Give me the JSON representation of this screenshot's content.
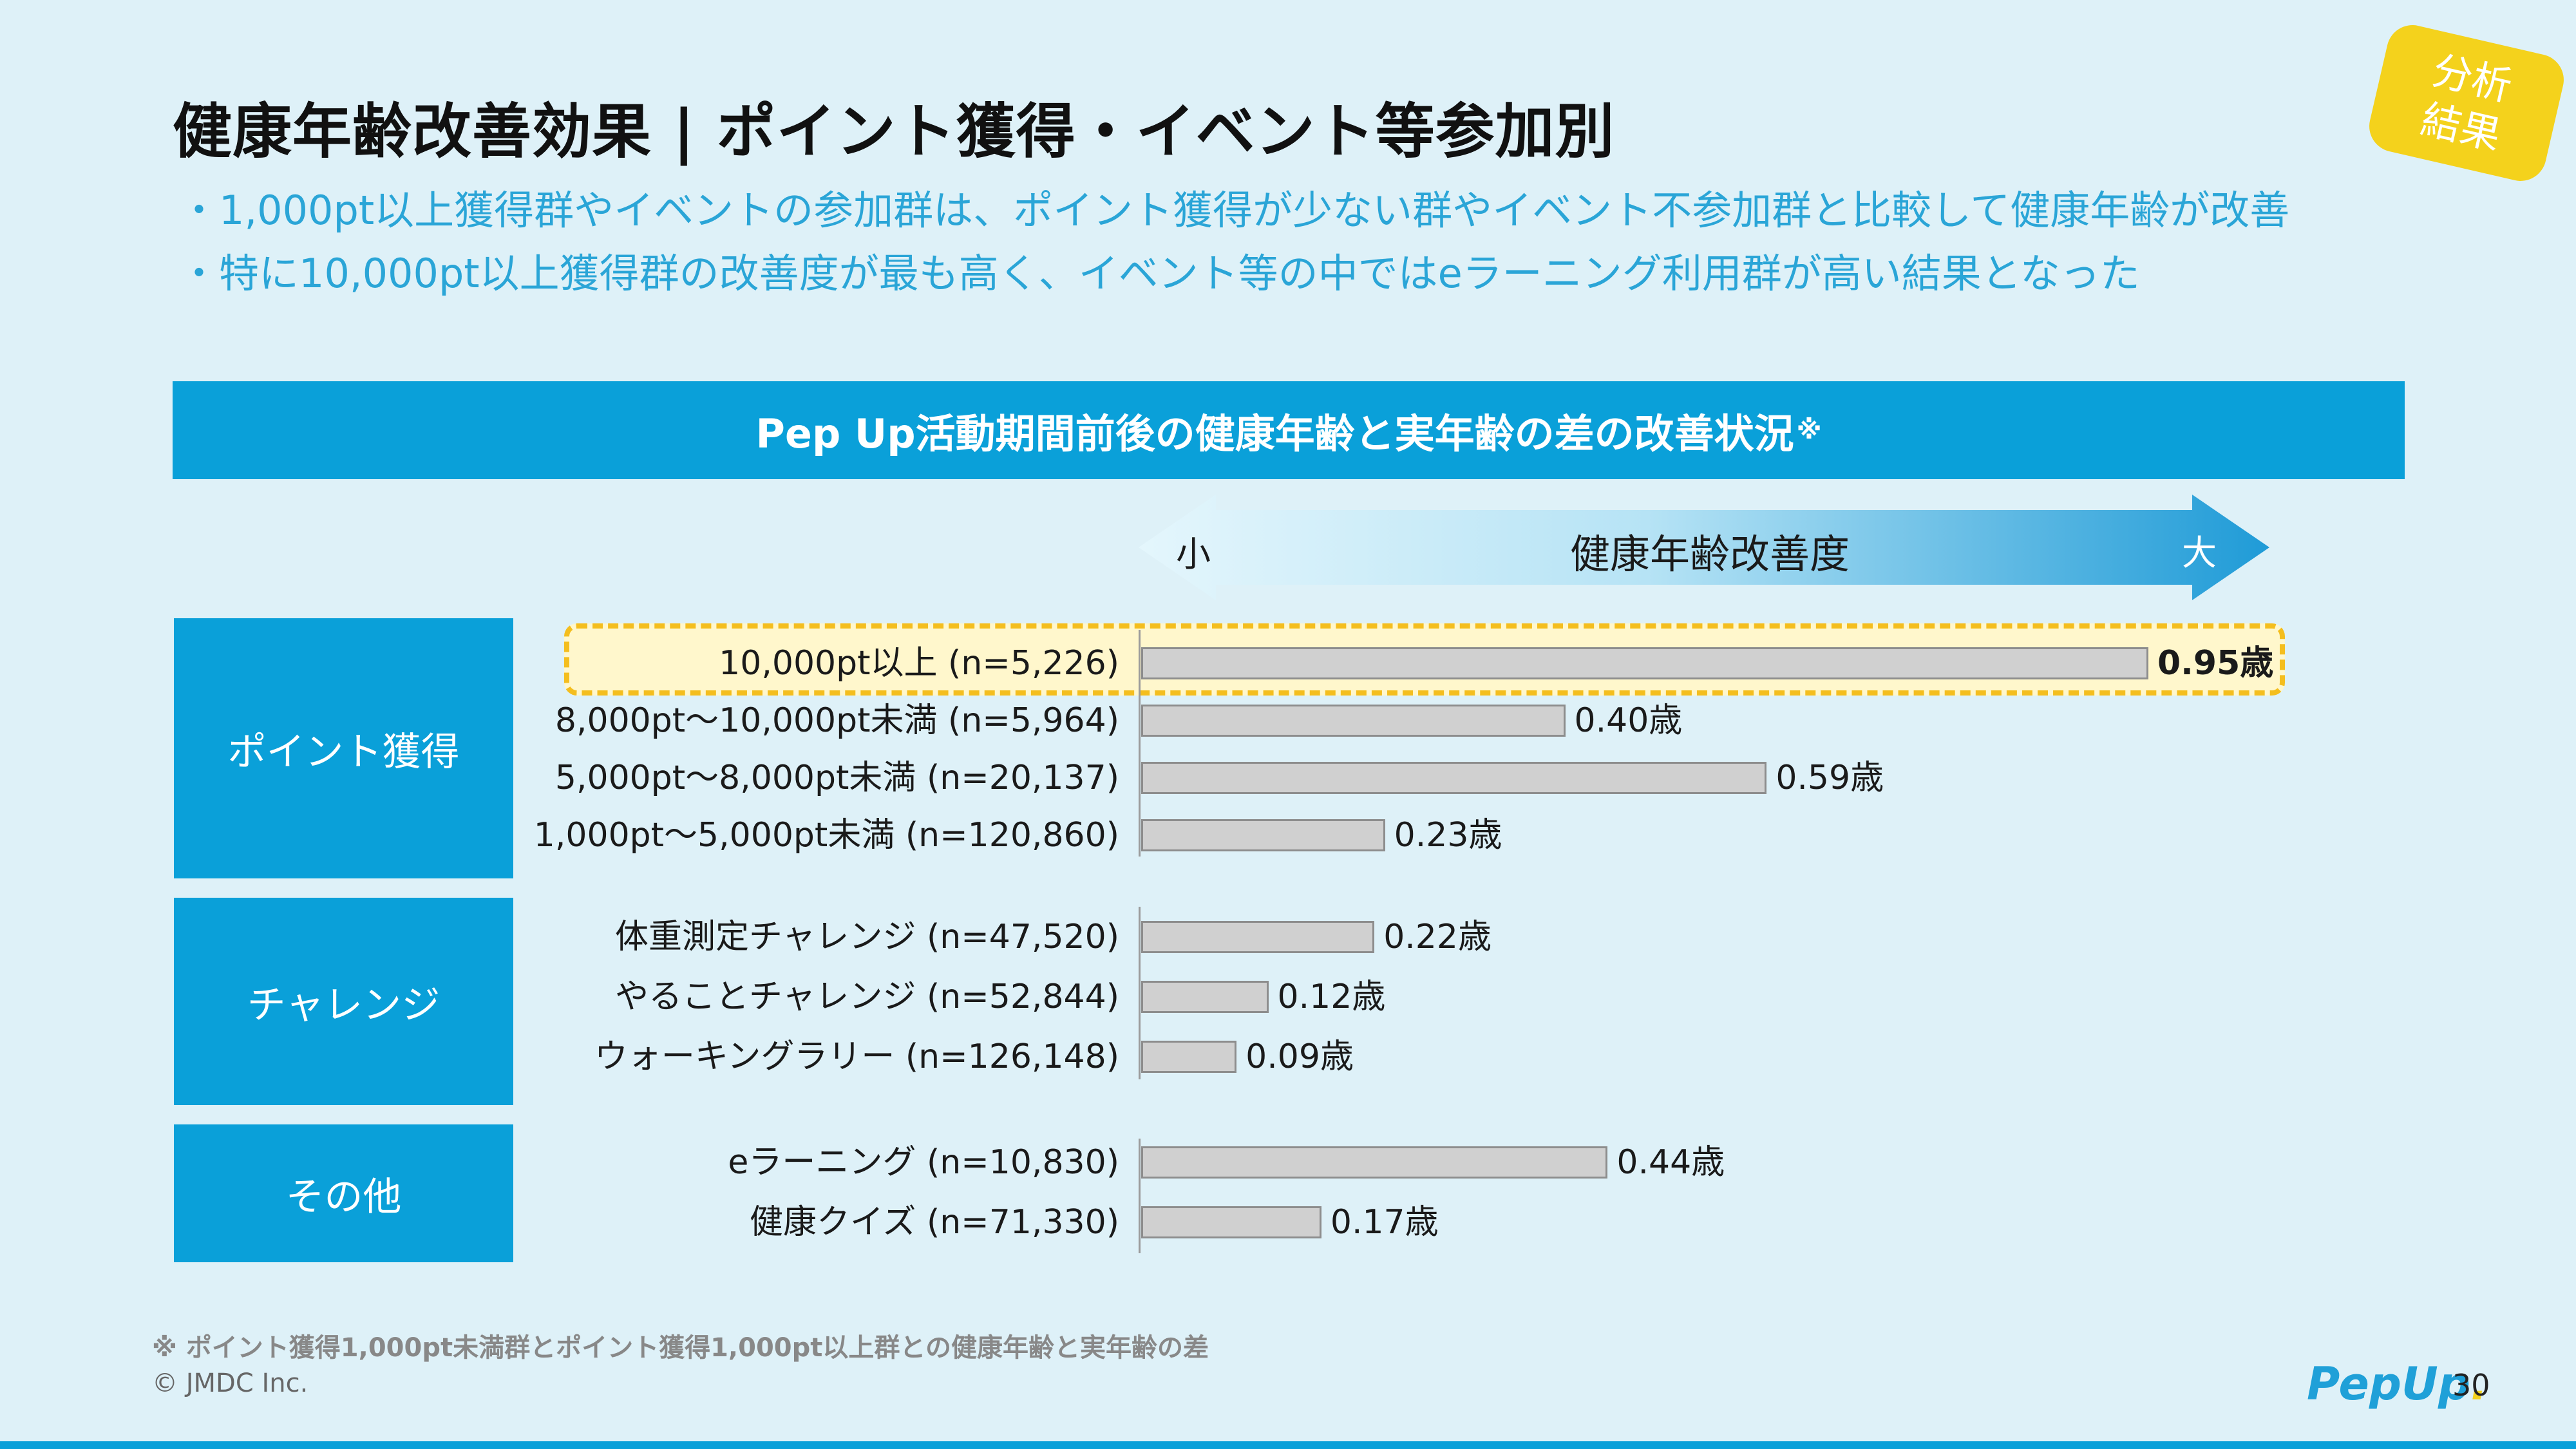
{
  "title": "健康年齢改善効果 | ポイント獲得・イベント等参加別",
  "badge": {
    "line1": "分析",
    "line2": "結果",
    "color": "#f4d21c"
  },
  "bullets": [
    "・1,000pt以上獲得群やイベントの参加群は、ポイント獲得が少ない群やイベント不参加群と比較して健康年齢が改善",
    "・特に10,000pt以上獲得群の改善度が最も高く、イベント等の中ではeラーニング利用群が高い結果となった"
  ],
  "banner": {
    "text": "Pep Up活動期間前後の健康年齢と実年齢の差の改善状況",
    "mark": "※"
  },
  "arrow": {
    "small": "小",
    "label": "健康年齢改善度",
    "big": "大"
  },
  "groups": {
    "points": "ポイント獲得",
    "challenge": "チャレンジ",
    "other": "その他"
  },
  "chart_data": {
    "type": "bar",
    "orientation": "horizontal",
    "title": "Pep Up活動期間前後の健康年齢と実年齢の差の改善状況※",
    "xlim": [
      0,
      0.95
    ],
    "categories": [
      "10,000pt以上 (n=5,226)",
      "8,000pt〜10,000pt未満 (n=5,964)",
      "5,000pt〜8,000pt未満 (n=20,137)",
      "1,000pt〜5,000pt未満 (n=120,860)",
      "体重測定チャレンジ (n=47,520)",
      "やることチャレンジ (n=52,844)",
      "ウォーキングラリー (n=126,148)",
      "eラーニング (n=10,830)",
      "健康クイズ (n=71,330)"
    ],
    "values": [
      0.95,
      0.4,
      0.59,
      0.23,
      0.22,
      0.12,
      0.09,
      0.44,
      0.17
    ],
    "value_labels": [
      "0.95歳",
      "0.40歳",
      "0.59歳",
      "0.23歳",
      "0.22歳",
      "0.12歳",
      "0.09歳",
      "0.44歳",
      "0.17歳"
    ],
    "groups": [
      {
        "name": "ポイント獲得",
        "indices": [
          0,
          1,
          2,
          3
        ]
      },
      {
        "name": "チャレンジ",
        "indices": [
          4,
          5,
          6
        ]
      },
      {
        "name": "その他",
        "indices": [
          7,
          8
        ]
      }
    ],
    "highlighted_index": 0,
    "bar_color": "#d0d0d0",
    "highlight_color": "#f4be1e"
  },
  "footnote": "※ ポイント獲得1,000pt未満群とポイント獲得1,000pt以上群との健康年齢と実年齢の差",
  "copyright": "© JMDC Inc.",
  "logo": {
    "text": "PepUp",
    "dot": "."
  },
  "page_number": "30"
}
